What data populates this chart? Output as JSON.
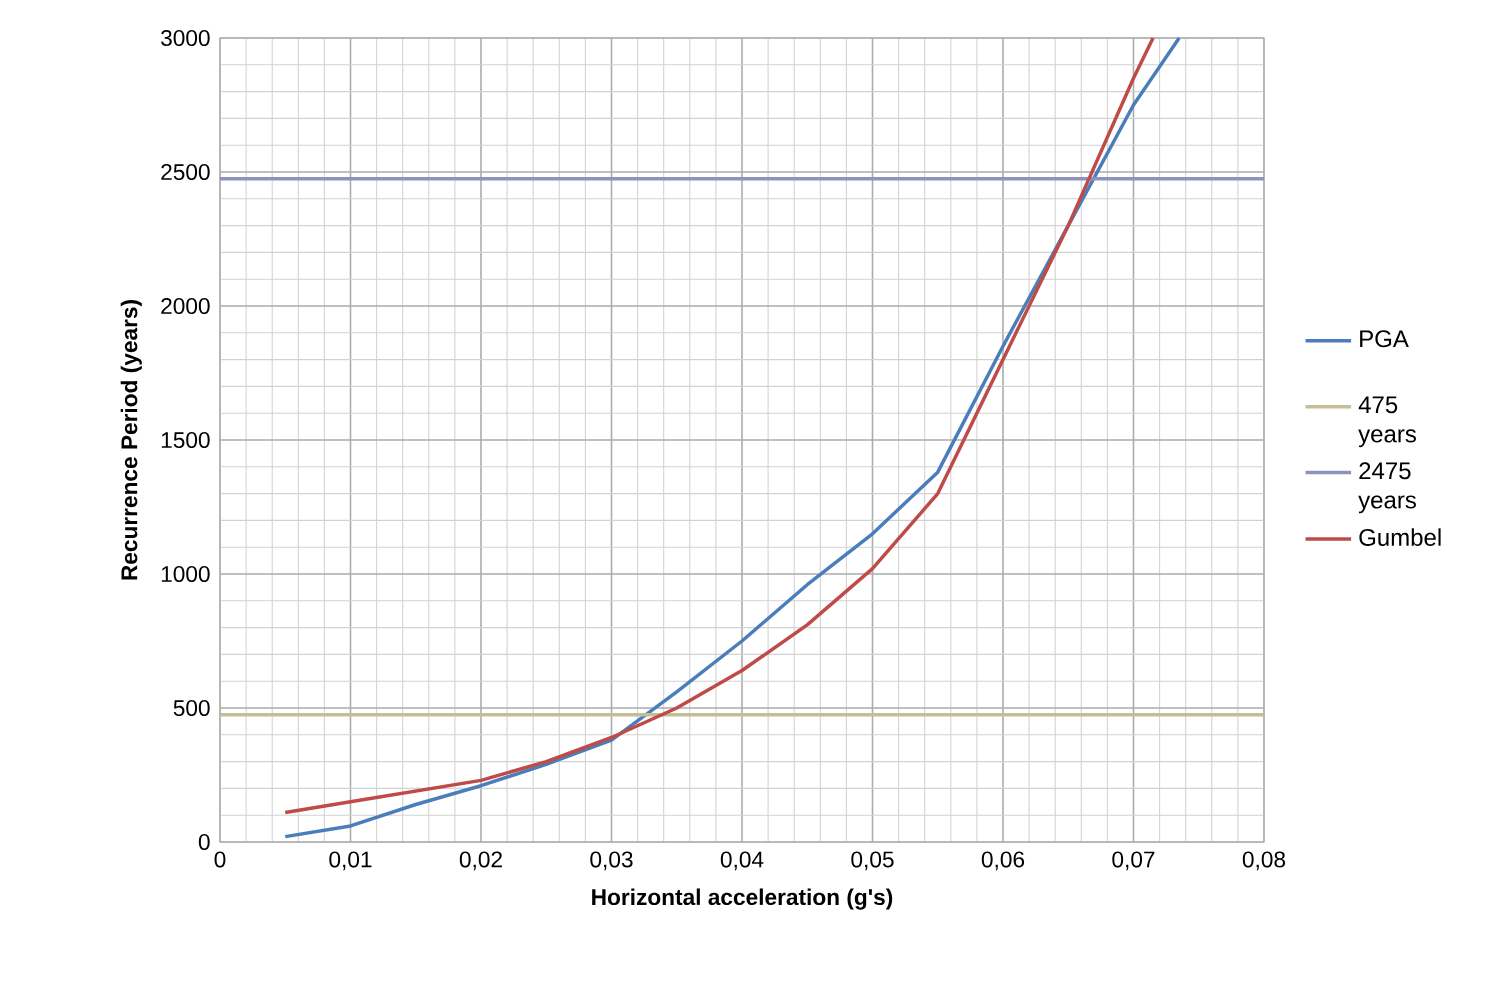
{
  "chart_data": {
    "type": "line",
    "xlabel": "Horizontal acceleration (g's)",
    "ylabel": "Recurrence Period (years)",
    "xlim": [
      0,
      0.08
    ],
    "ylim": [
      0,
      3000
    ],
    "xticks": [
      0,
      {
        "value": 0.01,
        "label": "0,01"
      },
      {
        "value": 0.02,
        "label": "0,02"
      },
      {
        "value": 0.03,
        "label": "0,03"
      },
      {
        "value": 0.04,
        "label": "0,04"
      },
      {
        "value": 0.05,
        "label": "0,05"
      },
      {
        "value": 0.06,
        "label": "0,06"
      },
      {
        "value": 0.07,
        "label": "0,07"
      },
      {
        "value": 0.08,
        "label": "0,08"
      }
    ],
    "yticks": [
      0,
      500,
      1000,
      1500,
      2000,
      2500,
      3000
    ],
    "grid": true,
    "legend": "right",
    "marker": "none",
    "line_style": "solid",
    "series": [
      {
        "name": "PGA",
        "color": "#4a7ebb",
        "x": [
          0.005,
          0.01,
          0.015,
          0.02,
          0.025,
          0.03,
          0.035,
          0.04,
          0.045,
          0.05,
          0.055,
          0.06,
          0.065,
          0.07,
          0.0735
        ],
        "values": [
          20,
          60,
          140,
          210,
          290,
          380,
          560,
          750,
          960,
          1150,
          1380,
          1850,
          2300,
          2750,
          3000
        ]
      },
      {
        "name": "475 years",
        "color": "#c4bd97",
        "x": [
          0,
          0.08
        ],
        "values": [
          475,
          475
        ]
      },
      {
        "name": "2475 years",
        "color": "#8e92bd",
        "x": [
          0,
          0.08
        ],
        "values": [
          2475,
          2475
        ]
      },
      {
        "name": "Gumbel",
        "color": "#be4b48",
        "x": [
          0.005,
          0.01,
          0.015,
          0.02,
          0.025,
          0.03,
          0.035,
          0.04,
          0.045,
          0.05,
          0.055,
          0.06,
          0.065,
          0.07,
          0.0715
        ],
        "values": [
          110,
          150,
          190,
          230,
          300,
          390,
          500,
          640,
          810,
          1020,
          1300,
          1800,
          2300,
          2850,
          3000
        ]
      }
    ]
  }
}
